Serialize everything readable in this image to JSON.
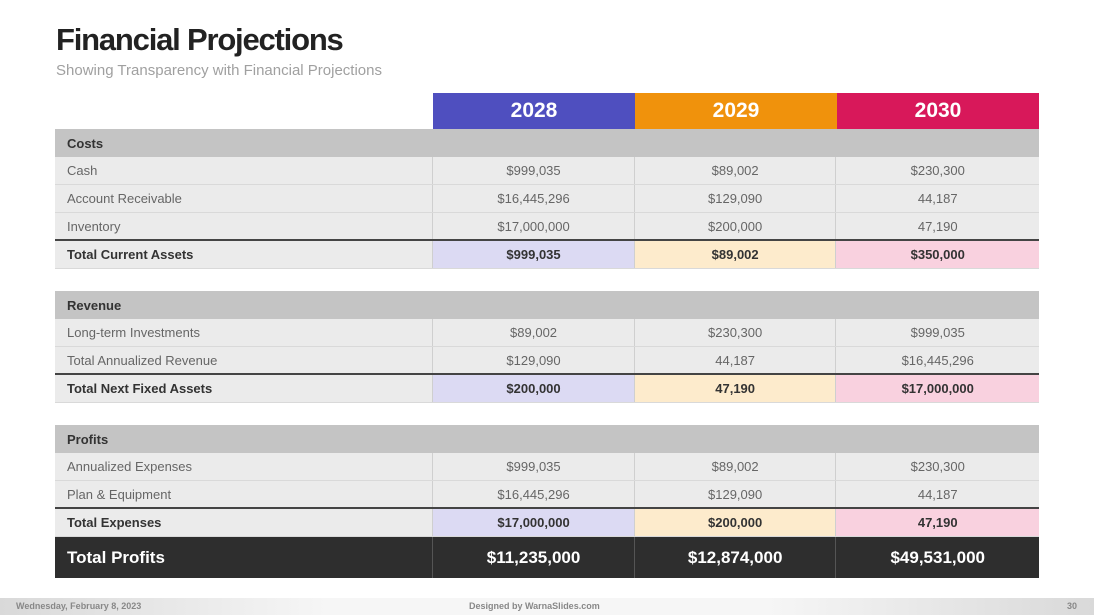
{
  "title": "Financial Projections",
  "subtitle": "Showing Transparency with Financial Projections",
  "years": [
    {
      "label": "2028",
      "color": "#4f4fbf"
    },
    {
      "label": "2029",
      "color": "#f0920c"
    },
    {
      "label": "2030",
      "color": "#d8185a"
    }
  ],
  "costs": {
    "header": "Costs",
    "rows": [
      {
        "label": "Cash",
        "values": [
          "$999,035",
          "$89,002",
          "$230,300"
        ]
      },
      {
        "label": "Account Receivable",
        "values": [
          "$16,445,296",
          "$129,090",
          "44,187"
        ]
      },
      {
        "label": "Inventory",
        "values": [
          "$17,000,000",
          "$200,000",
          "47,190"
        ]
      }
    ],
    "total": {
      "label": "Total Current Assets",
      "values": [
        "$999,035",
        "$89,002",
        "$350,000"
      ]
    }
  },
  "revenue": {
    "header": "Revenue",
    "rows": [
      {
        "label": "Long-term Investments",
        "values": [
          "$89,002",
          "$230,300",
          "$999,035"
        ]
      },
      {
        "label": "Total Annualized Revenue",
        "values": [
          "$129,090",
          "44,187",
          "$16,445,296"
        ]
      }
    ],
    "total": {
      "label": "Total Next Fixed Assets",
      "values": [
        "$200,000",
        "47,190",
        "$17,000,000"
      ]
    }
  },
  "profits": {
    "header": "Profits",
    "rows": [
      {
        "label": "Annualized Expenses",
        "values": [
          "$999,035",
          "$89,002",
          "$230,300"
        ]
      },
      {
        "label": "Plan & Equipment",
        "values": [
          "$16,445,296",
          "$129,090",
          "44,187"
        ]
      }
    ],
    "total": {
      "label": "Total Expenses",
      "values": [
        "$17,000,000",
        "$200,000",
        "47,190"
      ]
    }
  },
  "grand_total": {
    "label": "Total Profits",
    "values": [
      "$11,235,000",
      "$12,874,000",
      "$49,531,000"
    ]
  },
  "footer": {
    "date": "Wednesday, February 8, 2023",
    "credit": "Designed by WarnaSlides.com",
    "page": "30"
  }
}
